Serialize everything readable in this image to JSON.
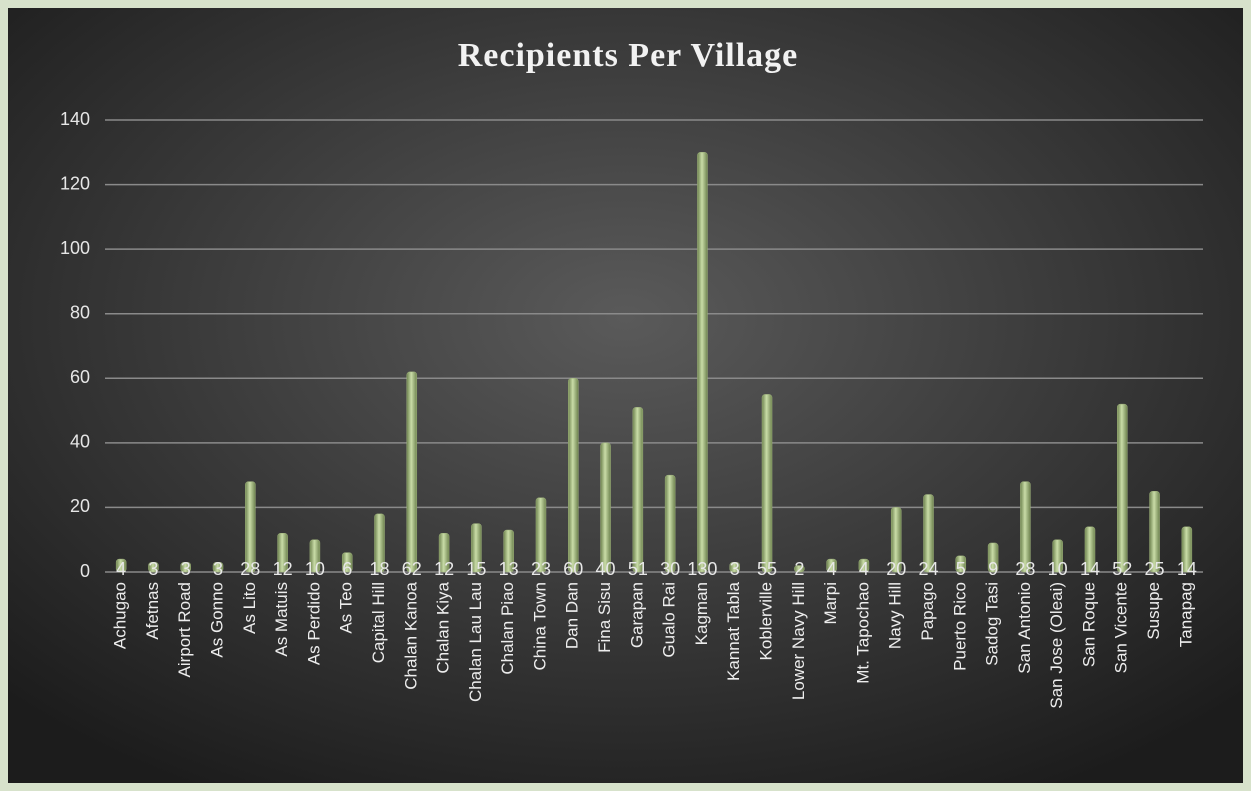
{
  "chart_data": {
    "type": "bar",
    "title": "Recipients Per Village",
    "categories": [
      "Achugao",
      "Afetnas",
      "Airport Road",
      "As Gonno",
      "As Lito",
      "As Matuis",
      "As Perdido",
      "As Teo",
      "Capital Hill",
      "Chalan Kanoa",
      "Chalan Kiya",
      "Chalan Lau Lau",
      "Chalan Piao",
      "China Town",
      "Dan Dan",
      "Fina Sisu",
      "Garapan",
      "Gualo Rai",
      "Kagman",
      "Kannat Tabla",
      "Koblerville",
      "Lower Navy Hill",
      "Marpi",
      "Mt. Tapochao",
      "Navy Hill",
      "Papago",
      "Puerto Rico",
      "Sadog Tasi",
      "San Antonio",
      "San Jose (Oleai)",
      "San Roque",
      "San Vicente",
      "Susupe",
      "Tanapag"
    ],
    "values": [
      4,
      3,
      3,
      3,
      28,
      12,
      10,
      6,
      18,
      62,
      12,
      15,
      13,
      23,
      60,
      40,
      51,
      30,
      130,
      3,
      55,
      2,
      4,
      4,
      20,
      24,
      5,
      9,
      28,
      10,
      14,
      52,
      25,
      14
    ],
    "color": "#9fb37c",
    "ylim": [
      0,
      140
    ],
    "yticks": [
      0,
      20,
      40,
      60,
      80,
      100,
      120,
      140
    ],
    "grid": true
  }
}
